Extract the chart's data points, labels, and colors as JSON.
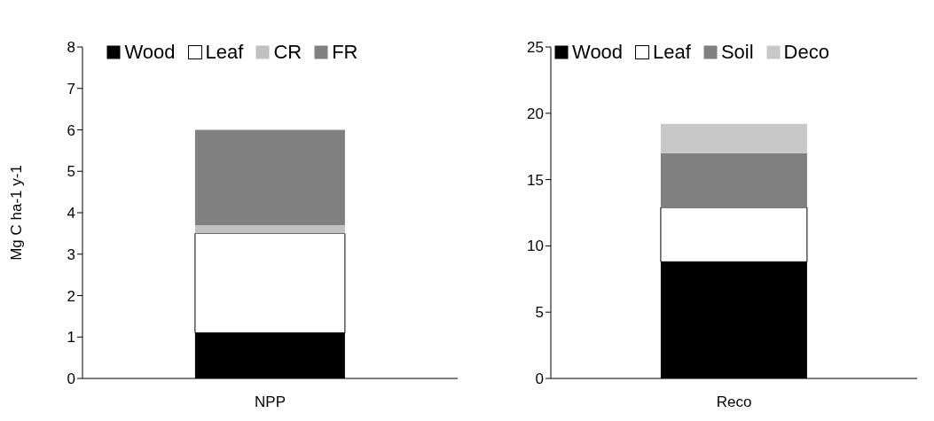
{
  "chart_data": [
    {
      "type": "bar",
      "stacked": true,
      "ylabel": "Mg C ha-1 y-1",
      "categories": [
        "NPP"
      ],
      "ylim": [
        0,
        8
      ],
      "yticks": [
        0,
        1,
        2,
        3,
        4,
        5,
        6,
        7,
        8
      ],
      "legend": "top",
      "series": [
        {
          "name": "Wood",
          "color": "#000000",
          "values": [
            1.1
          ]
        },
        {
          "name": "Leaf",
          "color": "#ffffff",
          "values": [
            2.4
          ]
        },
        {
          "name": "CR",
          "color": "#c0c0c0",
          "values": [
            0.2
          ]
        },
        {
          "name": "FR",
          "color": "#808080",
          "values": [
            2.3
          ]
        }
      ]
    },
    {
      "type": "bar",
      "stacked": true,
      "categories": [
        "Reco"
      ],
      "ylim": [
        0,
        25
      ],
      "yticks": [
        0,
        5,
        10,
        15,
        20,
        25
      ],
      "legend": "top",
      "series": [
        {
          "name": "Wood",
          "color": "#000000",
          "values": [
            8.8
          ]
        },
        {
          "name": "Leaf",
          "color": "#ffffff",
          "values": [
            4.1
          ]
        },
        {
          "name": "Soil",
          "color": "#808080",
          "values": [
            4.1
          ]
        },
        {
          "name": "Deco",
          "color": "#c8c8c8",
          "values": [
            2.2
          ]
        }
      ]
    }
  ]
}
